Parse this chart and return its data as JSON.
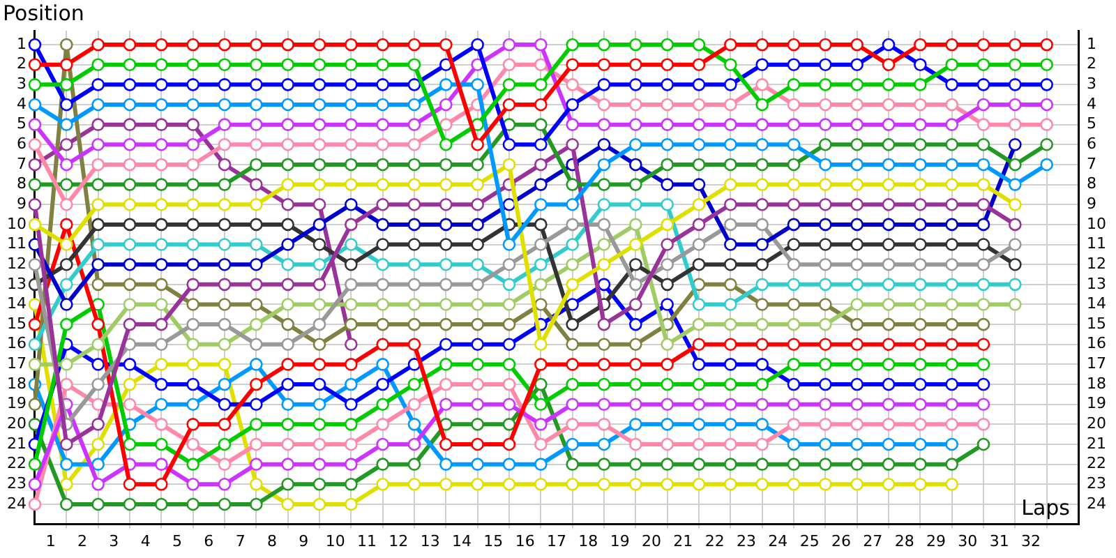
{
  "chart_data": {
    "type": "line",
    "xlabel": "Laps",
    "ylabel": "Position",
    "grid": true,
    "legend": false,
    "marker": "circle",
    "line_style": "solid",
    "x": [
      0,
      1,
      2,
      3,
      4,
      5,
      6,
      7,
      8,
      9,
      10,
      11,
      12,
      13,
      14,
      15,
      16,
      17,
      18,
      19,
      20,
      21,
      22,
      23,
      24,
      25,
      26,
      27,
      28,
      29,
      30,
      31,
      32
    ],
    "xlim": [
      0,
      33
    ],
    "xticks": [
      {
        "value": 0.5,
        "label": "1"
      },
      {
        "value": 1,
        "label": null
      },
      {
        "value": 1.5,
        "label": "2"
      },
      {
        "value": 2,
        "label": null
      },
      {
        "value": 2.5,
        "label": "3"
      },
      {
        "value": 3,
        "label": null
      },
      {
        "value": 3.5,
        "label": "4"
      },
      {
        "value": 4,
        "label": null
      },
      {
        "value": 4.5,
        "label": "5"
      },
      {
        "value": 5,
        "label": null
      },
      {
        "value": 5.5,
        "label": "6"
      },
      {
        "value": 6,
        "label": null
      },
      {
        "value": 6.5,
        "label": "7"
      },
      {
        "value": 7,
        "label": null
      },
      {
        "value": 7.5,
        "label": "8"
      },
      {
        "value": 8,
        "label": null
      },
      {
        "value": 8.5,
        "label": "9"
      },
      {
        "value": 9,
        "label": null
      },
      {
        "value": 9.5,
        "label": "10"
      },
      {
        "value": 10,
        "label": null
      },
      {
        "value": 10.5,
        "label": "11"
      },
      {
        "value": 11,
        "label": null
      },
      {
        "value": 11.5,
        "label": "12"
      },
      {
        "value": 12,
        "label": null
      },
      {
        "value": 12.5,
        "label": "13"
      },
      {
        "value": 13,
        "label": null
      },
      {
        "value": 13.5,
        "label": "14"
      },
      {
        "value": 14,
        "label": null
      },
      {
        "value": 14.5,
        "label": "15"
      },
      {
        "value": 15,
        "label": null
      },
      {
        "value": 15.5,
        "label": "16"
      },
      {
        "value": 16,
        "label": null
      },
      {
        "value": 16.5,
        "label": "17"
      },
      {
        "value": 17,
        "label": null
      },
      {
        "value": 17.5,
        "label": "18"
      },
      {
        "value": 18,
        "label": null
      },
      {
        "value": 18.5,
        "label": "19"
      },
      {
        "value": 19,
        "label": null
      },
      {
        "value": 19.5,
        "label": "20"
      },
      {
        "value": 20,
        "label": null
      },
      {
        "value": 20.5,
        "label": "21"
      },
      {
        "value": 21,
        "label": null
      },
      {
        "value": 21.5,
        "label": "22"
      },
      {
        "value": 22,
        "label": null
      },
      {
        "value": 22.5,
        "label": "23"
      },
      {
        "value": 23,
        "label": null
      },
      {
        "value": 23.5,
        "label": "24"
      },
      {
        "value": 24,
        "label": null
      },
      {
        "value": 24.5,
        "label": "25"
      },
      {
        "value": 25,
        "label": null
      },
      {
        "value": 25.5,
        "label": "26"
      },
      {
        "value": 26,
        "label": null
      },
      {
        "value": 26.5,
        "label": "27"
      },
      {
        "value": 27,
        "label": null
      },
      {
        "value": 27.5,
        "label": "28"
      },
      {
        "value": 28,
        "label": null
      },
      {
        "value": 28.5,
        "label": "29"
      },
      {
        "value": 29,
        "label": null
      },
      {
        "value": 29.5,
        "label": "30"
      },
      {
        "value": 30,
        "label": null
      },
      {
        "value": 30.5,
        "label": "31"
      },
      {
        "value": 31,
        "label": null
      },
      {
        "value": 31.5,
        "label": "32"
      },
      {
        "value": 32,
        "label": null
      }
    ],
    "ylim": [
      25,
      0.3
    ],
    "yticks": [
      1,
      2,
      3,
      4,
      5,
      6,
      7,
      8,
      9,
      10,
      11,
      12,
      13,
      14,
      15,
      16,
      17,
      18,
      19,
      20,
      21,
      22,
      23,
      24
    ],
    "y2lim": [
      25,
      0.3
    ],
    "y2ticks": [
      1,
      2,
      3,
      4,
      5,
      6,
      7,
      8,
      9,
      10,
      11,
      12,
      13,
      14,
      15,
      16,
      17,
      18,
      19,
      20,
      21,
      22,
      23,
      24
    ],
    "series": [
      {
        "color": "#ff0000",
        "values": [
          2,
          2,
          1,
          1,
          1,
          1,
          1,
          1,
          1,
          1,
          1,
          1,
          1,
          1,
          6,
          4,
          4,
          2,
          2,
          2,
          2,
          2,
          1,
          1,
          1,
          1,
          1,
          2,
          1,
          1,
          1,
          1,
          1
        ]
      },
      {
        "color": "#00cc00",
        "values": [
          3,
          3,
          2,
          2,
          2,
          2,
          2,
          2,
          2,
          2,
          2,
          2,
          2,
          6,
          5,
          3,
          3,
          1,
          1,
          1,
          1,
          1,
          2,
          4,
          3,
          3,
          3,
          3,
          3,
          2,
          2,
          2,
          2
        ]
      },
      {
        "color": "#0000ff",
        "values": [
          1,
          4,
          3,
          3,
          3,
          3,
          3,
          3,
          3,
          3,
          3,
          3,
          3,
          2,
          1,
          6,
          6,
          4,
          3,
          3,
          3,
          3,
          3,
          2,
          2,
          2,
          2,
          1,
          2,
          3,
          3,
          3,
          3
        ]
      },
      {
        "color": "#0099ff",
        "values": [
          4,
          5,
          4,
          4,
          4,
          4,
          4,
          4,
          4,
          4,
          4,
          4,
          4,
          3,
          3,
          11,
          9,
          9,
          7,
          6,
          6,
          6,
          6,
          6,
          6,
          7,
          7,
          7,
          7,
          7,
          7,
          8,
          7
        ]
      },
      {
        "color": "#cc33ff",
        "values": [
          5,
          7,
          6,
          6,
          6,
          6,
          5,
          5,
          5,
          5,
          5,
          5,
          5,
          4,
          2,
          1,
          1,
          5,
          5,
          5,
          5,
          5,
          5,
          5,
          5,
          5,
          5,
          5,
          5,
          5,
          4,
          4,
          4
        ]
      },
      {
        "color": "#ff88aa",
        "values": [
          6,
          9,
          7,
          7,
          7,
          7,
          6,
          6,
          6,
          6,
          6,
          6,
          6,
          5,
          4,
          2,
          2,
          3,
          4,
          4,
          4,
          4,
          4,
          3,
          4,
          4,
          4,
          4,
          4,
          4,
          5,
          5,
          5
        ]
      },
      {
        "color": "#229922",
        "values": [
          8,
          8,
          8,
          8,
          8,
          8,
          8,
          7,
          7,
          7,
          7,
          7,
          7,
          7,
          7,
          5,
          5,
          8,
          8,
          8,
          7,
          7,
          7,
          7,
          7,
          6,
          6,
          6,
          6,
          6,
          6,
          7,
          6
        ]
      },
      {
        "color": "#e0e000",
        "values": [
          10,
          11,
          9,
          9,
          9,
          9,
          9,
          9,
          8,
          8,
          8,
          8,
          8,
          8,
          8,
          7,
          16,
          13,
          12,
          11,
          10,
          9,
          8,
          8,
          8,
          8,
          8,
          8,
          8,
          8,
          8,
          9,
          null
        ]
      },
      {
        "color": "#993399",
        "values": [
          9,
          21,
          20,
          15,
          15,
          13,
          13,
          13,
          13,
          13,
          10,
          9,
          9,
          9,
          9,
          8,
          7,
          6,
          15,
          14,
          11,
          10,
          9,
          9,
          9,
          9,
          9,
          9,
          9,
          9,
          9,
          10,
          null
        ]
      },
      {
        "color": "#0000cc",
        "values": [
          11,
          14,
          12,
          12,
          12,
          12,
          12,
          12,
          11,
          10,
          9,
          10,
          10,
          10,
          10,
          9,
          8,
          7,
          6,
          7,
          8,
          8,
          11,
          11,
          10,
          10,
          10,
          10,
          10,
          10,
          10,
          6,
          null
        ]
      },
      {
        "color": "#999999",
        "values": [
          12,
          20,
          18,
          16,
          16,
          15,
          15,
          16,
          16,
          15,
          13,
          13,
          13,
          13,
          13,
          12,
          11,
          10,
          10,
          13,
          12,
          11,
          10,
          10,
          12,
          12,
          12,
          12,
          12,
          12,
          12,
          11,
          null
        ]
      },
      {
        "color": "#333333",
        "values": [
          13,
          12,
          10,
          10,
          10,
          10,
          10,
          10,
          10,
          11,
          12,
          11,
          11,
          11,
          11,
          10,
          10,
          15,
          14,
          12,
          13,
          12,
          12,
          12,
          11,
          11,
          11,
          11,
          11,
          11,
          11,
          12,
          null
        ]
      },
      {
        "color": "#33cccc",
        "values": [
          16,
          13,
          11,
          11,
          11,
          11,
          11,
          11,
          12,
          12,
          11,
          12,
          12,
          12,
          12,
          13,
          12,
          11,
          9,
          9,
          9,
          14,
          14,
          13,
          13,
          13,
          13,
          13,
          13,
          13,
          13,
          13,
          null
        ]
      },
      {
        "color": "#a0cc66",
        "values": [
          17,
          17,
          16,
          14,
          14,
          16,
          16,
          15,
          14,
          14,
          14,
          14,
          14,
          14,
          14,
          14,
          13,
          12,
          11,
          10,
          16,
          15,
          15,
          15,
          15,
          15,
          14,
          14,
          14,
          14,
          14,
          14,
          null
        ]
      },
      {
        "color": "#808040",
        "values": [
          19,
          1,
          13,
          13,
          13,
          14,
          14,
          14,
          15,
          16,
          15,
          15,
          15,
          15,
          15,
          15,
          14,
          16,
          16,
          16,
          15,
          13,
          13,
          14,
          14,
          14,
          15,
          15,
          15,
          15,
          15,
          null,
          null
        ]
      },
      {
        "color": "#993399",
        "values": [
          7,
          6,
          5,
          5,
          5,
          5,
          7,
          8,
          9,
          9,
          16,
          null,
          null,
          null,
          null,
          null,
          null,
          null,
          null,
          null,
          null,
          null,
          null,
          null,
          null,
          null,
          null,
          null,
          null,
          null,
          null,
          null,
          null
        ]
      },
      {
        "color": "#ff0000",
        "values": [
          15,
          10,
          15,
          23,
          23,
          20,
          20,
          18,
          17,
          17,
          17,
          16,
          16,
          21,
          21,
          21,
          17,
          17,
          17,
          17,
          17,
          16,
          16,
          16,
          16,
          16,
          16,
          16,
          16,
          16,
          16,
          null,
          null
        ]
      },
      {
        "color": "#00cc00",
        "values": [
          22,
          15,
          14,
          21,
          21,
          22,
          21,
          20,
          20,
          20,
          20,
          19,
          18,
          17,
          17,
          17,
          19,
          18,
          18,
          18,
          18,
          18,
          18,
          18,
          17,
          17,
          17,
          17,
          17,
          17,
          17,
          null,
          null
        ]
      },
      {
        "color": "#0000ff",
        "values": [
          21,
          16,
          17,
          17,
          18,
          18,
          19,
          19,
          18,
          18,
          19,
          18,
          17,
          16,
          16,
          16,
          15,
          14,
          13,
          15,
          14,
          17,
          17,
          17,
          18,
          18,
          18,
          18,
          18,
          18,
          18,
          null,
          null
        ]
      },
      {
        "color": "#cc33ff",
        "values": [
          23,
          19,
          23,
          22,
          22,
          23,
          23,
          22,
          22,
          22,
          22,
          21,
          21,
          19,
          19,
          19,
          20,
          19,
          19,
          19,
          19,
          19,
          19,
          19,
          19,
          19,
          19,
          19,
          19,
          19,
          19,
          null,
          null
        ]
      },
      {
        "color": "#ff88aa",
        "values": [
          24,
          18,
          19,
          19,
          20,
          21,
          22,
          21,
          21,
          21,
          21,
          20,
          19,
          18,
          18,
          18,
          21,
          20,
          20,
          21,
          21,
          21,
          21,
          21,
          20,
          20,
          20,
          20,
          20,
          20,
          20,
          null,
          null
        ]
      },
      {
        "color": "#0099ff",
        "values": [
          18,
          22,
          22,
          20,
          19,
          19,
          18,
          17,
          19,
          19,
          18,
          17,
          20,
          22,
          22,
          22,
          22,
          21,
          21,
          20,
          20,
          20,
          20,
          20,
          21,
          21,
          21,
          21,
          21,
          21,
          null,
          null,
          null
        ]
      },
      {
        "color": "#229922",
        "values": [
          20,
          24,
          24,
          24,
          24,
          24,
          24,
          24,
          23,
          23,
          23,
          22,
          22,
          20,
          20,
          20,
          18,
          22,
          22,
          22,
          22,
          22,
          22,
          22,
          22,
          22,
          22,
          22,
          22,
          22,
          21,
          null,
          null
        ]
      },
      {
        "color": "#e0e000",
        "values": [
          14,
          23,
          21,
          18,
          17,
          17,
          17,
          23,
          24,
          24,
          24,
          23,
          23,
          23,
          23,
          23,
          23,
          23,
          23,
          23,
          23,
          23,
          23,
          23,
          23,
          23,
          23,
          23,
          23,
          23,
          null,
          null,
          null
        ]
      }
    ]
  }
}
